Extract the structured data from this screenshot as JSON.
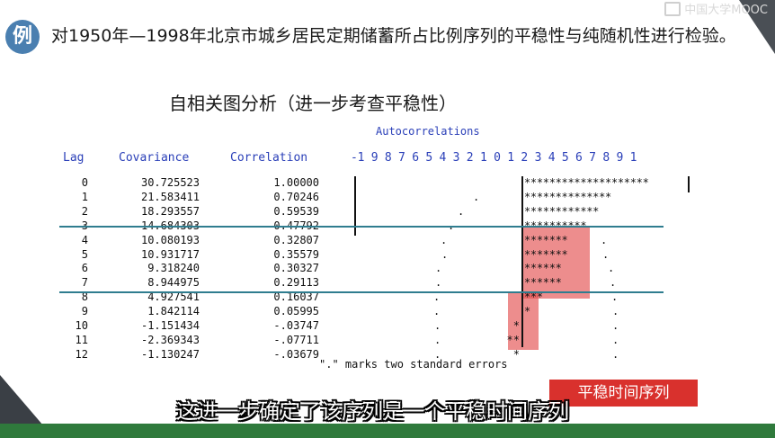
{
  "logo_text": "中国大学MOOC",
  "badge": "例",
  "question": "对1950年—1998年北京市城乡居民定期储蓄所占比例序列的平稳性与纯随机性进行检验。",
  "subtitle": "自相关图分析（进一步考查平稳性）",
  "sas_output": {
    "title": "Autocorrelations",
    "headers": {
      "lag": "Lag",
      "covariance": "Covariance",
      "correlation": "Correlation",
      "scale": "-1 9 8 7 6 5 4 3 2 1 0 1 2 3 4 5 6 7 8 9 1"
    },
    "rows": [
      {
        "lag": "0",
        "cov": "30.725523",
        "cor": "1.00000",
        "bar": "********************",
        "neg": "",
        "dot": ""
      },
      {
        "lag": "1",
        "cov": "21.583411",
        "cor": "0.70246",
        "bar": "**************",
        "neg": "",
        "dot": "."
      },
      {
        "lag": "2",
        "cov": "18.293557",
        "cor": "0.59539",
        "bar": "************",
        "neg": "",
        "dot": "."
      },
      {
        "lag": "3",
        "cov": "14.684303",
        "cor": "0.47792",
        "bar": "**********",
        "neg": "",
        "dot": "."
      },
      {
        "lag": "4",
        "cov": "10.080193",
        "cor": "0.32807",
        "bar": "*******",
        "neg": "",
        "dot": "."
      },
      {
        "lag": "5",
        "cov": "10.931717",
        "cor": "0.35579",
        "bar": "*******",
        "neg": "",
        "dot": "."
      },
      {
        "lag": "6",
        "cov": "9.318240",
        "cor": "0.30327",
        "bar": "******",
        "neg": "",
        "dot": "."
      },
      {
        "lag": "7",
        "cov": "8.944975",
        "cor": "0.29113",
        "bar": "******",
        "neg": "",
        "dot": "."
      },
      {
        "lag": "8",
        "cov": "4.927541",
        "cor": "0.16037",
        "bar": "***",
        "neg": "",
        "dot": "."
      },
      {
        "lag": "9",
        "cov": "1.842114",
        "cor": "0.05995",
        "bar": "*",
        "neg": "",
        "dot": "."
      },
      {
        "lag": "10",
        "cov": "-1.151434",
        "cor": "-.03747",
        "bar": "",
        "neg": "*",
        "dot": "."
      },
      {
        "lag": "11",
        "cov": "-2.369343",
        "cor": "-.07711",
        "bar": "",
        "neg": "**",
        "dot": "."
      },
      {
        "lag": "12",
        "cov": "-1.130247",
        "cor": "-.03679",
        "bar": "",
        "neg": "*",
        "dot": "."
      }
    ],
    "note": "\".\" marks two standard errors"
  },
  "tag_button": "平稳时间序列",
  "caption": "这进一步确定了该序列是一个平稳时间序列"
}
